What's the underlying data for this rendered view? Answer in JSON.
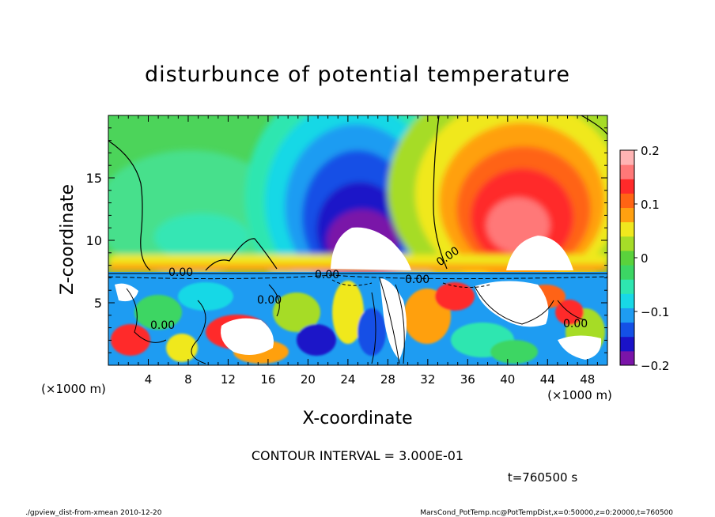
{
  "chart_data": {
    "type": "heatmap",
    "title": "disturbunce of potential temperature",
    "xlabel": "X-coordinate",
    "ylabel": "Z-coordinate",
    "x_unit": "(×1000 m)",
    "y_unit": "(×1000 m)",
    "xlim": [
      0,
      50
    ],
    "ylim": [
      0,
      20
    ],
    "x_ticks": [
      "4",
      "8",
      "12",
      "16",
      "20",
      "24",
      "28",
      "32",
      "36",
      "40",
      "44",
      "48"
    ],
    "y_ticks": [
      "5",
      "10",
      "15"
    ],
    "colorbar": {
      "range": [
        -0.2,
        0.2
      ],
      "tick_labels": [
        "0.2",
        "0.1",
        "0",
        "−0.1",
        "−0.2"
      ],
      "tick_values": [
        0.2,
        0.1,
        0,
        -0.1,
        -0.2
      ]
    },
    "contour_label": "0.00",
    "features": [
      {
        "x": 24.5,
        "z": 11.5,
        "value": -0.2
      },
      {
        "x": 40.5,
        "z": 12.5,
        "value": 0.18
      },
      {
        "x": 24.5,
        "z": 7.5,
        "value": -0.25
      }
    ],
    "contour_interval_text": "CONTOUR INTERVAL = 3.000E-01",
    "time_text": "t=760500 s"
  },
  "footer": {
    "left": "./gpview_dist-from-xmean  2010-12-20",
    "right": "MarsCond_PotTemp.nc@PotTempDist,x=0:50000,z=0:20000,t=760500"
  },
  "colors": {
    "ramp": [
      "#7a14a8",
      "#1a12c8",
      "#1450e6",
      "#1e9cf2",
      "#18d8e6",
      "#2ee6b0",
      "#3cd664",
      "#5ad23c",
      "#a6dc28",
      "#f0e81e",
      "#ffa010",
      "#ff6414",
      "#ff2a2a",
      "#ff7878",
      "#ffb4b4"
    ]
  }
}
